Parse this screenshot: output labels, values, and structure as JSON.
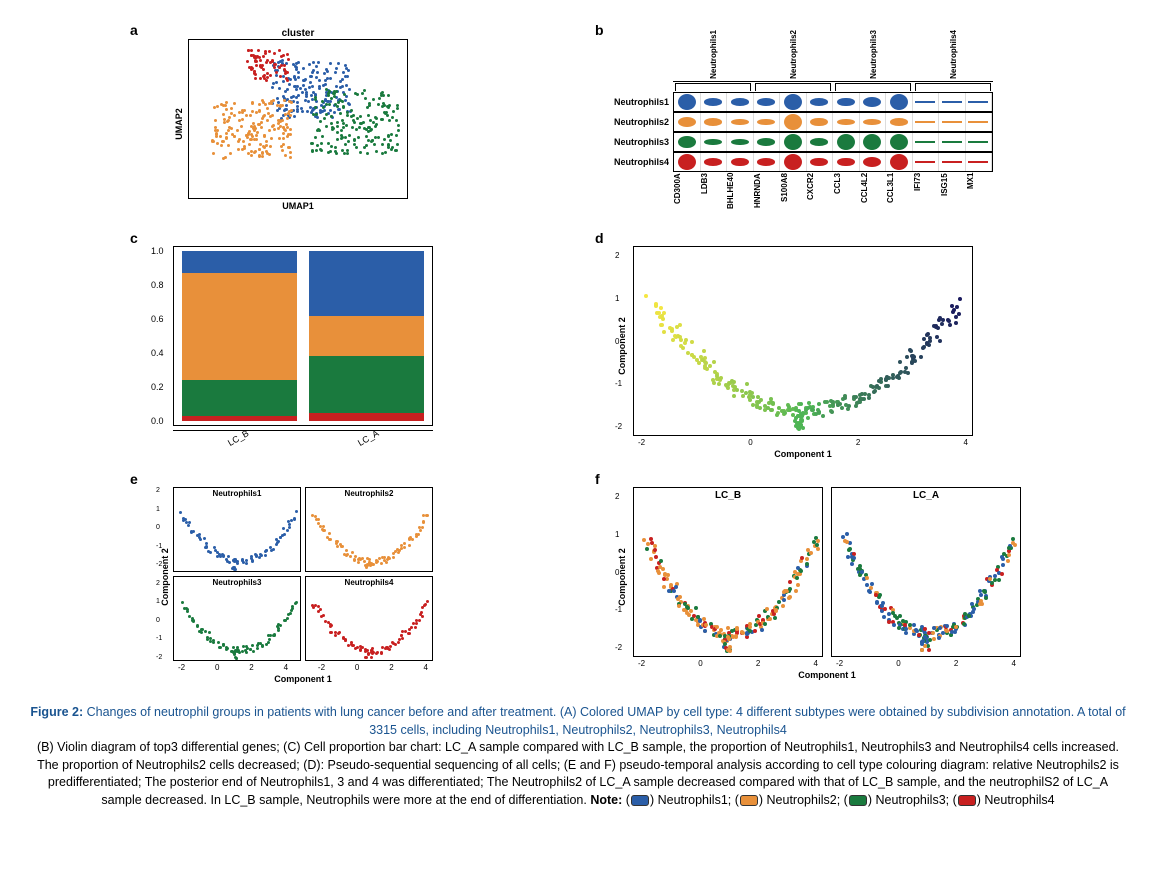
{
  "colors": {
    "neutrophils1": "#2b5ea8",
    "neutrophils2": "#e8903a",
    "neutrophils3": "#1a7a3e",
    "neutrophils4": "#c82020",
    "pseudotime_start": "#f5e642",
    "pseudotime_mid": "#4fb555",
    "pseudotime_end": "#1a1a5e",
    "background": "#ffffff",
    "border": "#000000",
    "caption_blue": "#1a5490"
  },
  "panel_a": {
    "label": "a",
    "title": "cluster",
    "xlabel": "UMAP1",
    "ylabel": "UMAP2",
    "clusters": [
      "Neutrophils1",
      "Neutrophils2",
      "Neutrophils3",
      "Neutrophils4"
    ]
  },
  "panel_b": {
    "label": "b",
    "group_headers": [
      "Neutrophils1",
      "Neutrophils2",
      "Neutrophils3",
      "Neutrophils4"
    ],
    "rows": [
      "Neutrophils1",
      "Neutrophils2",
      "Neutrophils3",
      "Neutrophils4"
    ],
    "genes": [
      "CD300A",
      "LDB3",
      "BHLHE40",
      "HNRNDA",
      "S100A8",
      "CXCR2",
      "CCL3",
      "CCL4L2",
      "CCL3L1",
      "IFI73",
      "ISG15",
      "MX1"
    ],
    "row_colors": [
      "#2b5ea8",
      "#e8903a",
      "#1a7a3e",
      "#c82020"
    ],
    "expression": [
      [
        1,
        0.3,
        0.3,
        0.3,
        1,
        0.3,
        0.4,
        0.5,
        1,
        0.1,
        0.1,
        0.1
      ],
      [
        0.5,
        0.3,
        0.2,
        0.2,
        1,
        0.4,
        0.2,
        0.2,
        0.3,
        0.1,
        0.1,
        0.1
      ],
      [
        0.7,
        0.2,
        0.2,
        0.3,
        1,
        0.3,
        1,
        1,
        1,
        0.1,
        0.1,
        0.1
      ],
      [
        1,
        0.3,
        0.4,
        0.3,
        1,
        0.4,
        0.4,
        0.5,
        1,
        0.1,
        0.1,
        0.1
      ]
    ]
  },
  "panel_c": {
    "label": "c",
    "yticks": [
      "1.0",
      "0.8",
      "0.6",
      "0.4",
      "0.2",
      "0.0"
    ],
    "categories": [
      "LC_B",
      "LC_A"
    ],
    "stacks": {
      "LC_B": [
        {
          "color": "#c82020",
          "frac": 0.03
        },
        {
          "color": "#1a7a3e",
          "frac": 0.21
        },
        {
          "color": "#e8903a",
          "frac": 0.63
        },
        {
          "color": "#2b5ea8",
          "frac": 0.13
        }
      ],
      "LC_A": [
        {
          "color": "#c82020",
          "frac": 0.05
        },
        {
          "color": "#1a7a3e",
          "frac": 0.33
        },
        {
          "color": "#e8903a",
          "frac": 0.24
        },
        {
          "color": "#2b5ea8",
          "frac": 0.38
        }
      ]
    }
  },
  "panel_d": {
    "label": "d",
    "xlabel": "Component 1",
    "ylabel": "Component 2",
    "xticks": [
      "-2",
      "0",
      "2",
      "4"
    ],
    "yticks": [
      "2",
      "1",
      "0",
      "-1",
      "-2"
    ]
  },
  "panel_e": {
    "label": "e",
    "xlabel": "Component 1",
    "ylabel": "Component 2",
    "subtitles": [
      "Neutrophils1",
      "Neutrophils2",
      "Neutrophils3",
      "Neutrophils4"
    ],
    "sub_colors": [
      "#2b5ea8",
      "#e8903a",
      "#1a7a3e",
      "#c82020"
    ],
    "xticks": [
      "-2",
      "0",
      "2",
      "4",
      "-2",
      "0",
      "2",
      "4"
    ],
    "yticks": [
      "2",
      "1",
      "0",
      "-1",
      "-2",
      "2",
      "1",
      "0",
      "-1",
      "-2"
    ]
  },
  "panel_f": {
    "label": "f",
    "xlabel": "Component 1",
    "ylabel": "Component 2",
    "subtitles": [
      "LC_B",
      "LC_A"
    ],
    "xticks_left": [
      "-2",
      "0",
      "2",
      "4"
    ],
    "xticks_right": [
      "-2",
      "0",
      "2",
      "4"
    ],
    "yticks": [
      "2",
      "1",
      "0",
      "-1",
      "-2"
    ]
  },
  "caption": {
    "title": "Figure 2:",
    "main": "Changes of neutrophil groups in patients with lung cancer before and after treatment. (A) Colored UMAP by cell type: 4 different subtypes were obtained by subdivision annotation. A total of 3315 cells, including Neutrophils1, Neutrophils2, Neutrophils3, Neutrophils4",
    "body": "(B) Violin diagram of top3 differential genes; (C) Cell proportion bar chart: LC_A sample compared with LC_B sample, the proportion of Neutrophils1, Neutrophils3 and Neutrophils4 cells increased. The proportion of Neutrophils2 cells decreased; (D): Pseudo-sequential sequencing of all cells; (E and F) pseudo-temporal analysis according to cell type colouring diagram: relative Neutrophils2 is predifferentiated; The posterior end of Neutrophils1, 3 and 4 was differentiated; The Neutrophils2 of LC_A sample decreased compared with that of LC_B sample, and the neutrophilS2 of LC_A sample decreased. In LC_B sample, Neutrophils were more at the end of differentiation.",
    "note_label": "Note:",
    "legend": [
      {
        "color": "#2b5ea8",
        "label": "Neutrophils1;"
      },
      {
        "color": "#e8903a",
        "label": "Neutrophils2;"
      },
      {
        "color": "#1a7a3e",
        "label": "Neutrophils3;"
      },
      {
        "color": "#c82020",
        "label": "Neutrophils4"
      }
    ]
  }
}
